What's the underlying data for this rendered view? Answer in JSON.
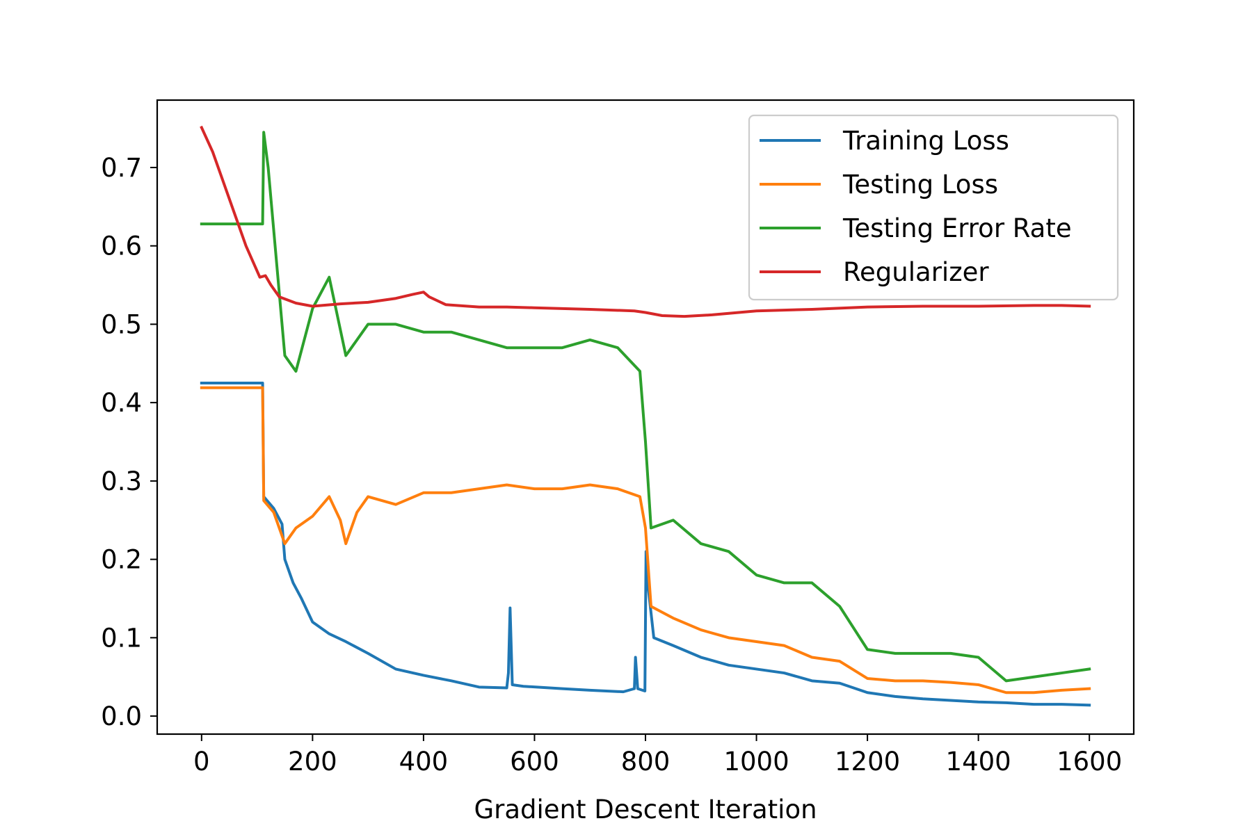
{
  "chart_data": {
    "type": "line",
    "title": "",
    "xlabel": "Gradient Descent Iteration",
    "ylabel": "",
    "xlim": [
      -80,
      1680
    ],
    "ylim": [
      -0.023,
      0.786
    ],
    "x_ticks": [
      0,
      200,
      400,
      600,
      800,
      1000,
      1200,
      1400,
      1600
    ],
    "y_ticks": [
      0.0,
      0.1,
      0.2,
      0.3,
      0.4,
      0.5,
      0.6,
      0.7
    ],
    "x_tick_labels": [
      "0",
      "200",
      "400",
      "600",
      "800",
      "1000",
      "1200",
      "1400",
      "1600"
    ],
    "y_tick_labels": [
      "0.0",
      "0.1",
      "0.2",
      "0.3",
      "0.4",
      "0.5",
      "0.6",
      "0.7"
    ],
    "grid": false,
    "legend_position": "top-right",
    "series": [
      {
        "name": "Training Loss",
        "color": "#1f77b4",
        "points": [
          [
            0,
            0.425
          ],
          [
            100,
            0.425
          ],
          [
            110,
            0.425
          ],
          [
            112,
            0.28
          ],
          [
            130,
            0.265
          ],
          [
            145,
            0.245
          ],
          [
            150,
            0.2
          ],
          [
            165,
            0.17
          ],
          [
            180,
            0.15
          ],
          [
            200,
            0.12
          ],
          [
            230,
            0.105
          ],
          [
            260,
            0.095
          ],
          [
            300,
            0.08
          ],
          [
            350,
            0.06
          ],
          [
            400,
            0.052
          ],
          [
            450,
            0.045
          ],
          [
            500,
            0.037
          ],
          [
            550,
            0.036
          ],
          [
            553,
            0.055
          ],
          [
            556,
            0.138
          ],
          [
            560,
            0.04
          ],
          [
            580,
            0.038
          ],
          [
            650,
            0.035
          ],
          [
            700,
            0.033
          ],
          [
            760,
            0.031
          ],
          [
            780,
            0.035
          ],
          [
            782,
            0.075
          ],
          [
            786,
            0.035
          ],
          [
            799,
            0.032
          ],
          [
            801,
            0.21
          ],
          [
            804,
            0.17
          ],
          [
            815,
            0.1
          ],
          [
            850,
            0.09
          ],
          [
            900,
            0.075
          ],
          [
            950,
            0.065
          ],
          [
            1000,
            0.06
          ],
          [
            1050,
            0.055
          ],
          [
            1100,
            0.045
          ],
          [
            1150,
            0.042
          ],
          [
            1200,
            0.03
          ],
          [
            1250,
            0.025
          ],
          [
            1300,
            0.022
          ],
          [
            1350,
            0.02
          ],
          [
            1400,
            0.018
          ],
          [
            1450,
            0.017
          ],
          [
            1500,
            0.015
          ],
          [
            1550,
            0.015
          ],
          [
            1600,
            0.014
          ]
        ]
      },
      {
        "name": "Testing Loss",
        "color": "#ff7f0e",
        "points": [
          [
            0,
            0.419
          ],
          [
            100,
            0.419
          ],
          [
            110,
            0.419
          ],
          [
            112,
            0.275
          ],
          [
            130,
            0.26
          ],
          [
            150,
            0.22
          ],
          [
            170,
            0.24
          ],
          [
            200,
            0.255
          ],
          [
            230,
            0.28
          ],
          [
            250,
            0.25
          ],
          [
            260,
            0.22
          ],
          [
            280,
            0.26
          ],
          [
            300,
            0.28
          ],
          [
            350,
            0.27
          ],
          [
            400,
            0.285
          ],
          [
            450,
            0.285
          ],
          [
            500,
            0.29
          ],
          [
            550,
            0.295
          ],
          [
            600,
            0.29
          ],
          [
            650,
            0.29
          ],
          [
            700,
            0.295
          ],
          [
            750,
            0.29
          ],
          [
            790,
            0.28
          ],
          [
            800,
            0.24
          ],
          [
            810,
            0.14
          ],
          [
            850,
            0.125
          ],
          [
            900,
            0.11
          ],
          [
            950,
            0.1
          ],
          [
            1000,
            0.095
          ],
          [
            1050,
            0.09
          ],
          [
            1100,
            0.075
          ],
          [
            1150,
            0.07
          ],
          [
            1200,
            0.048
          ],
          [
            1250,
            0.045
          ],
          [
            1300,
            0.045
          ],
          [
            1350,
            0.043
          ],
          [
            1400,
            0.04
          ],
          [
            1450,
            0.03
          ],
          [
            1500,
            0.03
          ],
          [
            1550,
            0.033
          ],
          [
            1600,
            0.035
          ]
        ]
      },
      {
        "name": "Testing Error Rate",
        "color": "#2ca02c",
        "points": [
          [
            0,
            0.628
          ],
          [
            100,
            0.628
          ],
          [
            110,
            0.628
          ],
          [
            112,
            0.745
          ],
          [
            120,
            0.7
          ],
          [
            135,
            0.58
          ],
          [
            150,
            0.46
          ],
          [
            170,
            0.44
          ],
          [
            200,
            0.52
          ],
          [
            230,
            0.56
          ],
          [
            260,
            0.46
          ],
          [
            300,
            0.5
          ],
          [
            350,
            0.5
          ],
          [
            400,
            0.49
          ],
          [
            450,
            0.49
          ],
          [
            500,
            0.48
          ],
          [
            550,
            0.47
          ],
          [
            600,
            0.47
          ],
          [
            650,
            0.47
          ],
          [
            700,
            0.48
          ],
          [
            750,
            0.47
          ],
          [
            790,
            0.44
          ],
          [
            800,
            0.35
          ],
          [
            810,
            0.24
          ],
          [
            850,
            0.25
          ],
          [
            900,
            0.22
          ],
          [
            950,
            0.21
          ],
          [
            1000,
            0.18
          ],
          [
            1050,
            0.17
          ],
          [
            1100,
            0.17
          ],
          [
            1150,
            0.14
          ],
          [
            1200,
            0.085
          ],
          [
            1250,
            0.08
          ],
          [
            1300,
            0.08
          ],
          [
            1350,
            0.08
          ],
          [
            1400,
            0.075
          ],
          [
            1450,
            0.045
          ],
          [
            1500,
            0.05
          ],
          [
            1550,
            0.055
          ],
          [
            1600,
            0.06
          ]
        ]
      },
      {
        "name": "Regularizer",
        "color": "#d62728",
        "points": [
          [
            0,
            0.751
          ],
          [
            20,
            0.72
          ],
          [
            50,
            0.66
          ],
          [
            80,
            0.6
          ],
          [
            105,
            0.56
          ],
          [
            115,
            0.562
          ],
          [
            125,
            0.55
          ],
          [
            140,
            0.535
          ],
          [
            170,
            0.527
          ],
          [
            200,
            0.523
          ],
          [
            250,
            0.526
          ],
          [
            300,
            0.528
          ],
          [
            350,
            0.533
          ],
          [
            380,
            0.538
          ],
          [
            400,
            0.541
          ],
          [
            410,
            0.535
          ],
          [
            440,
            0.525
          ],
          [
            500,
            0.522
          ],
          [
            550,
            0.522
          ],
          [
            600,
            0.521
          ],
          [
            700,
            0.519
          ],
          [
            780,
            0.517
          ],
          [
            800,
            0.515
          ],
          [
            830,
            0.511
          ],
          [
            870,
            0.51
          ],
          [
            920,
            0.512
          ],
          [
            1000,
            0.517
          ],
          [
            1100,
            0.519
          ],
          [
            1200,
            0.522
          ],
          [
            1300,
            0.523
          ],
          [
            1400,
            0.523
          ],
          [
            1500,
            0.524
          ],
          [
            1550,
            0.524
          ],
          [
            1600,
            0.523
          ]
        ]
      }
    ]
  }
}
